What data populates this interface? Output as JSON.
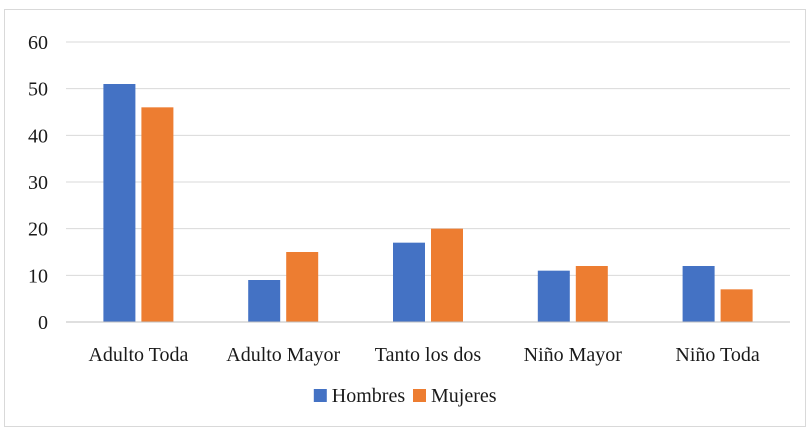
{
  "chart_data": {
    "type": "bar",
    "title": "",
    "xlabel": "",
    "ylabel": "",
    "categories": [
      "Adulto Toda",
      "Adulto Mayor",
      "Tanto los dos",
      "Niño Mayor",
      "Niño Toda"
    ],
    "series": [
      {
        "name": "Hombres",
        "color": "#4472c4",
        "values": [
          51,
          9,
          17,
          11,
          12
        ]
      },
      {
        "name": "Mujeres",
        "color": "#ed7d31",
        "values": [
          46,
          15,
          20,
          12,
          7
        ]
      }
    ],
    "ylim": [
      0,
      60
    ],
    "yticks": [
      "0",
      "10",
      "20",
      "30",
      "40",
      "50",
      "60"
    ],
    "grid": true,
    "legend_position": "bottom"
  }
}
